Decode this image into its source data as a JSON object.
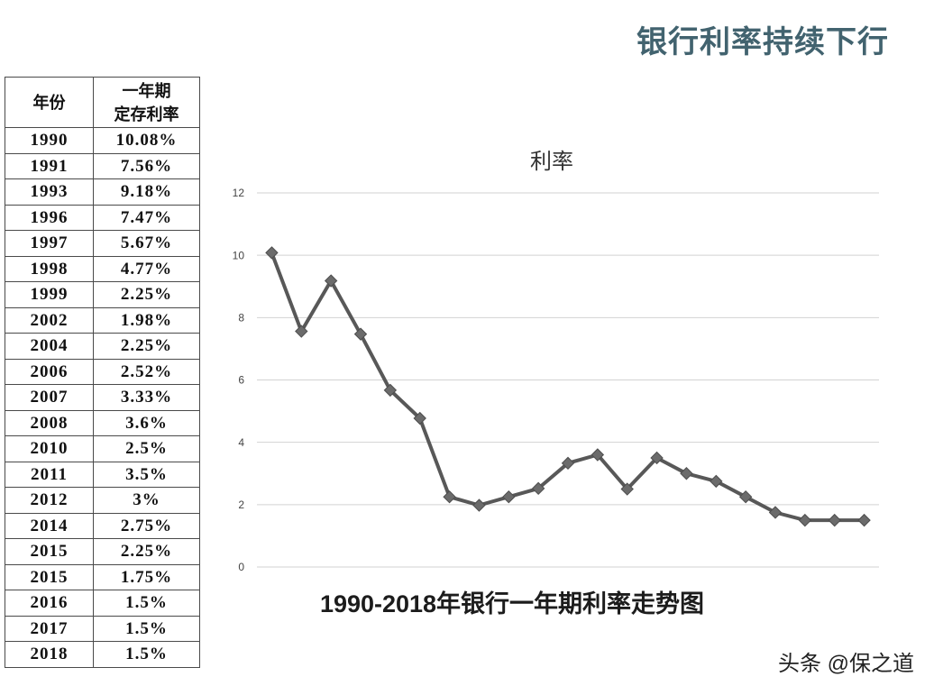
{
  "page_title": "银行利率持续下行",
  "colors": {
    "page_title": "#42636f"
  },
  "table": {
    "header": {
      "year": "年份",
      "rate_line1": "一年期",
      "rate_line2": "定存利率"
    },
    "rates": [
      "10.08%",
      "7.56%",
      "9.18%",
      "7.47%",
      "5.67%",
      "4.77%",
      "2.25%",
      "1.98%",
      "2.25%",
      "2.52%",
      "3.33%",
      "3.6%",
      "2.5%",
      "3.5%",
      "3%",
      "2.75%",
      "2.25%",
      "1.75%",
      "1.5%",
      "1.5%",
      "1.5%"
    ]
  },
  "chart_data": {
    "type": "line",
    "title": "利率",
    "caption": "1990-2018年银行一年期利率走势图",
    "categories": [
      "1990",
      "1991",
      "1993",
      "1996",
      "1997",
      "1998",
      "1999",
      "2002",
      "2004",
      "2006",
      "2007",
      "2008",
      "2010",
      "2011",
      "2012",
      "2014",
      "2015",
      "2015",
      "2016",
      "2017",
      "2018"
    ],
    "values": [
      10.08,
      7.56,
      9.18,
      7.47,
      5.67,
      4.77,
      2.25,
      1.98,
      2.25,
      2.52,
      3.33,
      3.6,
      2.5,
      3.5,
      3,
      2.75,
      2.25,
      1.75,
      1.5,
      1.5,
      1.5
    ],
    "ylim": [
      0,
      12
    ],
    "yticks": [
      0,
      2,
      4,
      6,
      8,
      10,
      12
    ],
    "grid": "horizontal",
    "legend": "none",
    "marker": "diamond",
    "colors": {
      "line": "#585858",
      "marker": "#6b6b6b",
      "marker_edge": "#4d4d4d",
      "grid": "#d2d2d2"
    }
  },
  "watermark": "头条 @保之道"
}
